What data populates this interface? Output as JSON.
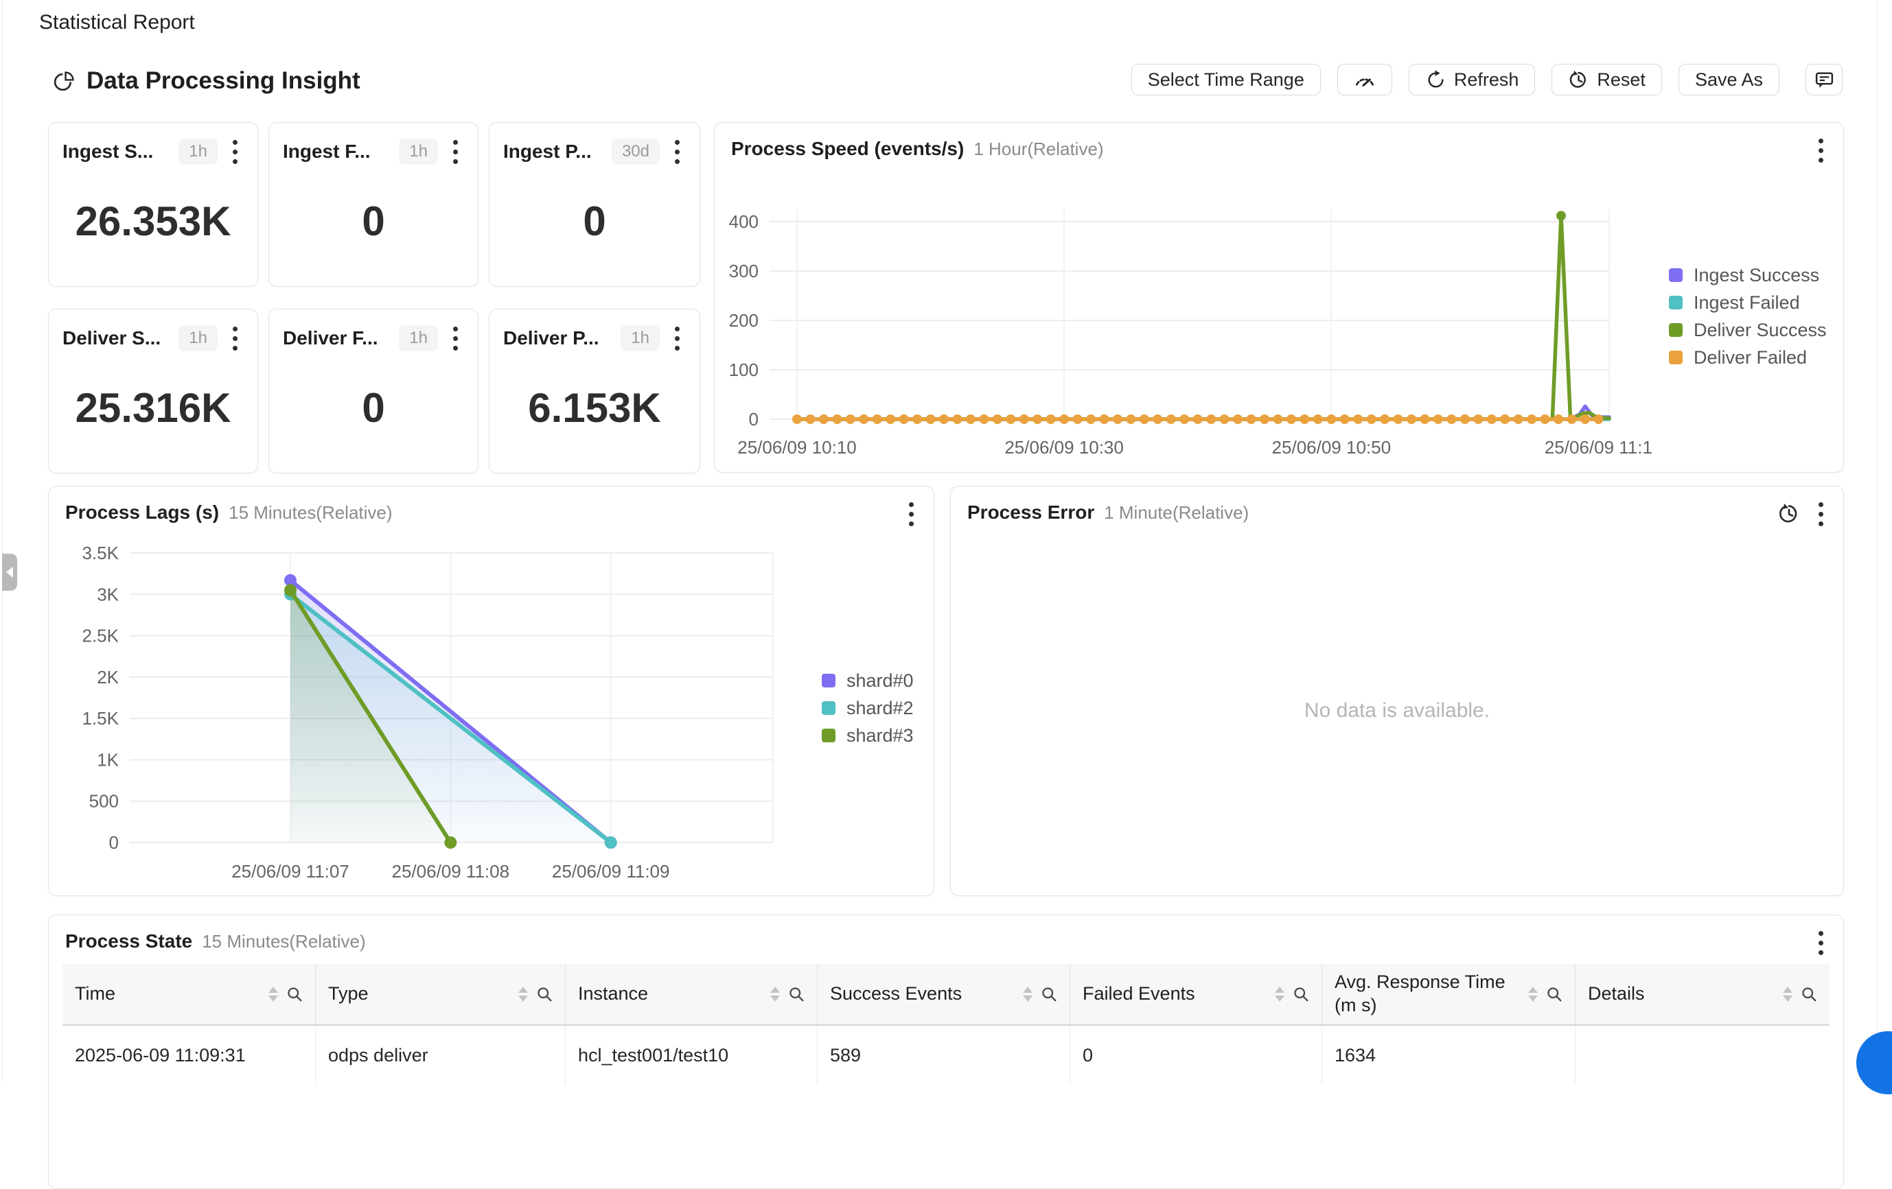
{
  "page": {
    "title": "Statistical Report"
  },
  "section": {
    "title": "Data Processing Insight"
  },
  "toolbar": {
    "select_time_range_label": "Select Time Range",
    "refresh_label": "Refresh",
    "reset_label": "Reset",
    "save_as_label": "Save As"
  },
  "icons": {
    "section": "pie-chart-icon",
    "toolbar": [
      "gauge-icon",
      "refresh-icon",
      "reset-clock-icon",
      "feedback-icon"
    ],
    "card_menu": "kebab-menu-icon",
    "process_error_history": "history-clock-icon",
    "table_header": [
      "sort-icon",
      "search-icon"
    ],
    "sidebar": "collapse-chevron-icon"
  },
  "kpi_cards": [
    {
      "title": "Ingest S...",
      "range": "1h",
      "value": "26.353K"
    },
    {
      "title": "Ingest F...",
      "range": "1h",
      "value": "0"
    },
    {
      "title": "Ingest P...",
      "range": "30d",
      "value": "0"
    },
    {
      "title": "Deliver S...",
      "range": "1h",
      "value": "25.316K"
    },
    {
      "title": "Deliver F...",
      "range": "1h",
      "value": "0"
    },
    {
      "title": "Deliver P...",
      "range": "1h",
      "value": "6.153K"
    }
  ],
  "process_error": {
    "title": "Process Error",
    "subtitle": "1 Minute(Relative)",
    "empty_text": "No data is available."
  },
  "process_state": {
    "title": "Process State",
    "subtitle": "15 Minutes(Relative)",
    "columns": [
      "Time",
      "Type",
      "Instance",
      "Success Events",
      "Failed Events",
      "Avg. Response Time (m s)",
      "Details"
    ],
    "rows": [
      [
        "2025-06-09 11:09:31",
        "odps deliver",
        "hcl_test001/test10",
        "589",
        "0",
        "1634",
        ""
      ]
    ]
  },
  "chart_data": [
    {
      "type": "line",
      "title": "Process Speed (events/s)",
      "subtitle": "1 Hour(Relative)",
      "x_unit": "minutes after 25/06/09 10:10",
      "x_tick_values": [
        0,
        20,
        40,
        60
      ],
      "x_tick_labels": [
        "25/06/09 10:10",
        "25/06/09 10:30",
        "25/06/09 10:50",
        "25/06/09 11:1"
      ],
      "y_tick_values": [
        0,
        100,
        200,
        300,
        400
      ],
      "y_tick_labels": [
        "0",
        "100",
        "200",
        "300",
        "400"
      ],
      "ylim": [
        0,
        400
      ],
      "grid": true,
      "legend_position": "right",
      "series": [
        {
          "name": "Ingest Success",
          "color": "#7d6ef2",
          "points": [
            [
              0,
              0
            ],
            [
              57.9,
              0
            ],
            [
              58.6,
              10
            ],
            [
              59.0,
              26
            ],
            [
              59.5,
              8
            ],
            [
              60.0,
              4
            ],
            [
              60.8,
              4
            ]
          ]
        },
        {
          "name": "Ingest Failed",
          "color": "#4fc0c4",
          "points": [
            [
              0,
              0
            ],
            [
              60.8,
              0
            ]
          ]
        },
        {
          "name": "Deliver Success",
          "color": "#6e9c27",
          "area": true,
          "points": [
            [
              0,
              0
            ],
            [
              56.55,
              0
            ],
            [
              57.2,
              412
            ],
            [
              57.9,
              0
            ],
            [
              58.3,
              4
            ],
            [
              58.8,
              12
            ],
            [
              59.3,
              13
            ],
            [
              59.9,
              3
            ],
            [
              60.8,
              2
            ]
          ],
          "dots": [
            [
              57.2,
              412
            ]
          ]
        },
        {
          "name": "Deliver Failed",
          "color": "#eaa23e",
          "dots": "all",
          "points": [
            [
              0,
              0
            ],
            [
              1,
              0
            ],
            [
              2,
              0
            ],
            [
              3,
              0
            ],
            [
              4,
              0
            ],
            [
              5,
              0
            ],
            [
              6,
              0
            ],
            [
              7,
              0
            ],
            [
              8,
              0
            ],
            [
              9,
              0
            ],
            [
              10,
              0
            ],
            [
              11,
              0
            ],
            [
              12,
              0
            ],
            [
              13,
              0
            ],
            [
              14,
              0
            ],
            [
              15,
              0
            ],
            [
              16,
              0
            ],
            [
              17,
              0
            ],
            [
              18,
              0
            ],
            [
              19,
              0
            ],
            [
              20,
              0
            ],
            [
              21,
              0
            ],
            [
              22,
              0
            ],
            [
              23,
              0
            ],
            [
              24,
              0
            ],
            [
              25,
              0
            ],
            [
              26,
              0
            ],
            [
              27,
              0
            ],
            [
              28,
              0
            ],
            [
              29,
              0
            ],
            [
              30,
              0
            ],
            [
              31,
              0
            ],
            [
              32,
              0
            ],
            [
              33,
              0
            ],
            [
              34,
              0
            ],
            [
              35,
              0
            ],
            [
              36,
              0
            ],
            [
              37,
              0
            ],
            [
              38,
              0
            ],
            [
              39,
              0
            ],
            [
              40,
              0
            ],
            [
              41,
              0
            ],
            [
              42,
              0
            ],
            [
              43,
              0
            ],
            [
              44,
              0
            ],
            [
              45,
              0
            ],
            [
              46,
              0
            ],
            [
              47,
              0
            ],
            [
              48,
              0
            ],
            [
              49,
              0
            ],
            [
              50,
              0
            ],
            [
              51,
              0
            ],
            [
              52,
              0
            ],
            [
              53,
              0
            ],
            [
              54,
              0
            ],
            [
              55,
              0
            ],
            [
              56,
              0
            ],
            [
              57,
              0
            ],
            [
              58,
              0
            ],
            [
              59,
              0
            ],
            [
              60,
              0
            ]
          ]
        }
      ]
    },
    {
      "type": "line",
      "title": "Process Lags (s)",
      "subtitle": "15 Minutes(Relative)",
      "x_unit": "minutes after 25/06/09 11:07",
      "x_tick_values": [
        0,
        1,
        2
      ],
      "x_tick_labels": [
        "25/06/09 11:07",
        "25/06/09 11:08",
        "25/06/09 11:09"
      ],
      "y_tick_values": [
        0,
        500,
        1000,
        1500,
        2000,
        2500,
        3000,
        3500
      ],
      "y_tick_labels": [
        "0",
        "500",
        "1K",
        "1.5K",
        "2K",
        "2.5K",
        "3K",
        "3.5K"
      ],
      "ylim": [
        0,
        3500
      ],
      "grid": true,
      "legend_position": "right",
      "series": [
        {
          "name": "shard#0",
          "color": "#7d6ef2",
          "area": true,
          "dots": "ends",
          "points": [
            [
              0,
              3170
            ],
            [
              2,
              0
            ]
          ]
        },
        {
          "name": "shard#2",
          "color": "#4fc0c4",
          "area": true,
          "dots": "ends",
          "points": [
            [
              0,
              3000
            ],
            [
              2,
              0
            ]
          ]
        },
        {
          "name": "shard#3",
          "color": "#6e9c27",
          "area": true,
          "dots": "ends",
          "points": [
            [
              0,
              3050
            ],
            [
              1,
              0
            ]
          ]
        }
      ]
    }
  ]
}
